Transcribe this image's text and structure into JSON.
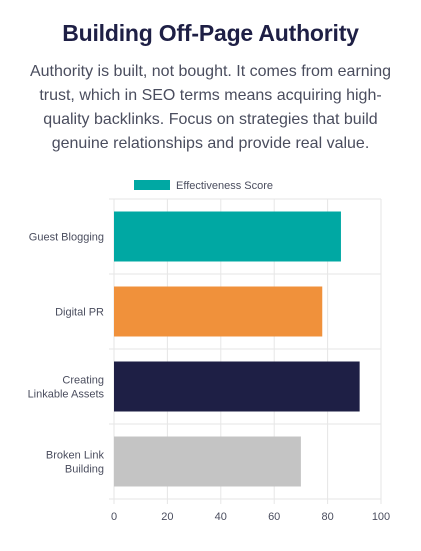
{
  "header": {
    "title": "Building Off-Page Authority",
    "subtitle": "Authority is built, not bought. It comes from earning trust, which in SEO terms means acquiring high-quality backlinks. Focus on strategies that build genuine relationships and provide real value."
  },
  "chart_data": {
    "type": "bar",
    "orientation": "horizontal",
    "categories": [
      [
        "Guest Blogging"
      ],
      [
        "Digital PR"
      ],
      [
        "Creating",
        "Linkable Assets"
      ],
      [
        "Broken Link",
        "Building"
      ]
    ],
    "series": [
      {
        "name": "Effectiveness Score",
        "values": [
          85,
          78,
          92,
          70
        ]
      }
    ],
    "bar_colors": [
      "#00a8a3",
      "#f0913b",
      "#1e1f45",
      "#c4c4c4"
    ],
    "legend_color": "#00a8a3",
    "xlim": [
      0,
      100
    ],
    "x_ticks": [
      0,
      20,
      40,
      60,
      80,
      100
    ],
    "grid": true,
    "legend_position": "top"
  }
}
